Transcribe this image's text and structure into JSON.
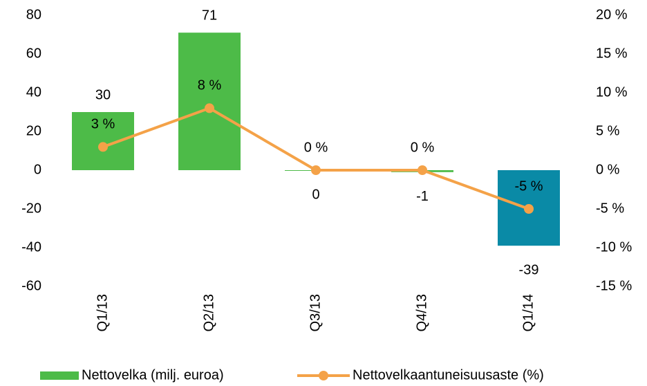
{
  "chart_data": {
    "type": "bar_line",
    "categories": [
      "Q1/13",
      "Q2/13",
      "Q3/13",
      "Q4/13",
      "Q1/14"
    ],
    "series": [
      {
        "name": "Nettovelka (milj. euroa)",
        "type": "bar",
        "color": "#4dbb48",
        "colors": [
          "#4dbb48",
          "#4dbb48",
          "#4dbb48",
          "#4dbb48",
          "#0a8aa6"
        ],
        "values": [
          30,
          71,
          0,
          -1,
          -39
        ]
      },
      {
        "name": "Nettovelkaantuneisuusaste (%)",
        "type": "line",
        "axis": "y2",
        "color": "#f4a248",
        "values": [
          3,
          8,
          0,
          0,
          -5
        ],
        "value_labels": [
          "3 %",
          "8 %",
          "0 %",
          "0 %",
          "-5 %"
        ]
      }
    ],
    "ylim": [
      -60,
      80
    ],
    "yticks": [
      -60,
      -40,
      -20,
      0,
      20,
      40,
      60,
      80
    ],
    "y2lim": [
      -15,
      20
    ],
    "y2ticks": [
      {
        "value": -15,
        "label": "-15 %"
      },
      {
        "value": -10,
        "label": "-10 %"
      },
      {
        "value": -5,
        "label": "-5 %"
      },
      {
        "value": 0,
        "label": "0 %"
      },
      {
        "value": 5,
        "label": "5 %"
      },
      {
        "value": 10,
        "label": "10 %"
      },
      {
        "value": 15,
        "label": "15 %"
      },
      {
        "value": 20,
        "label": "20 %"
      }
    ],
    "grid": false,
    "legend": "bottom"
  }
}
